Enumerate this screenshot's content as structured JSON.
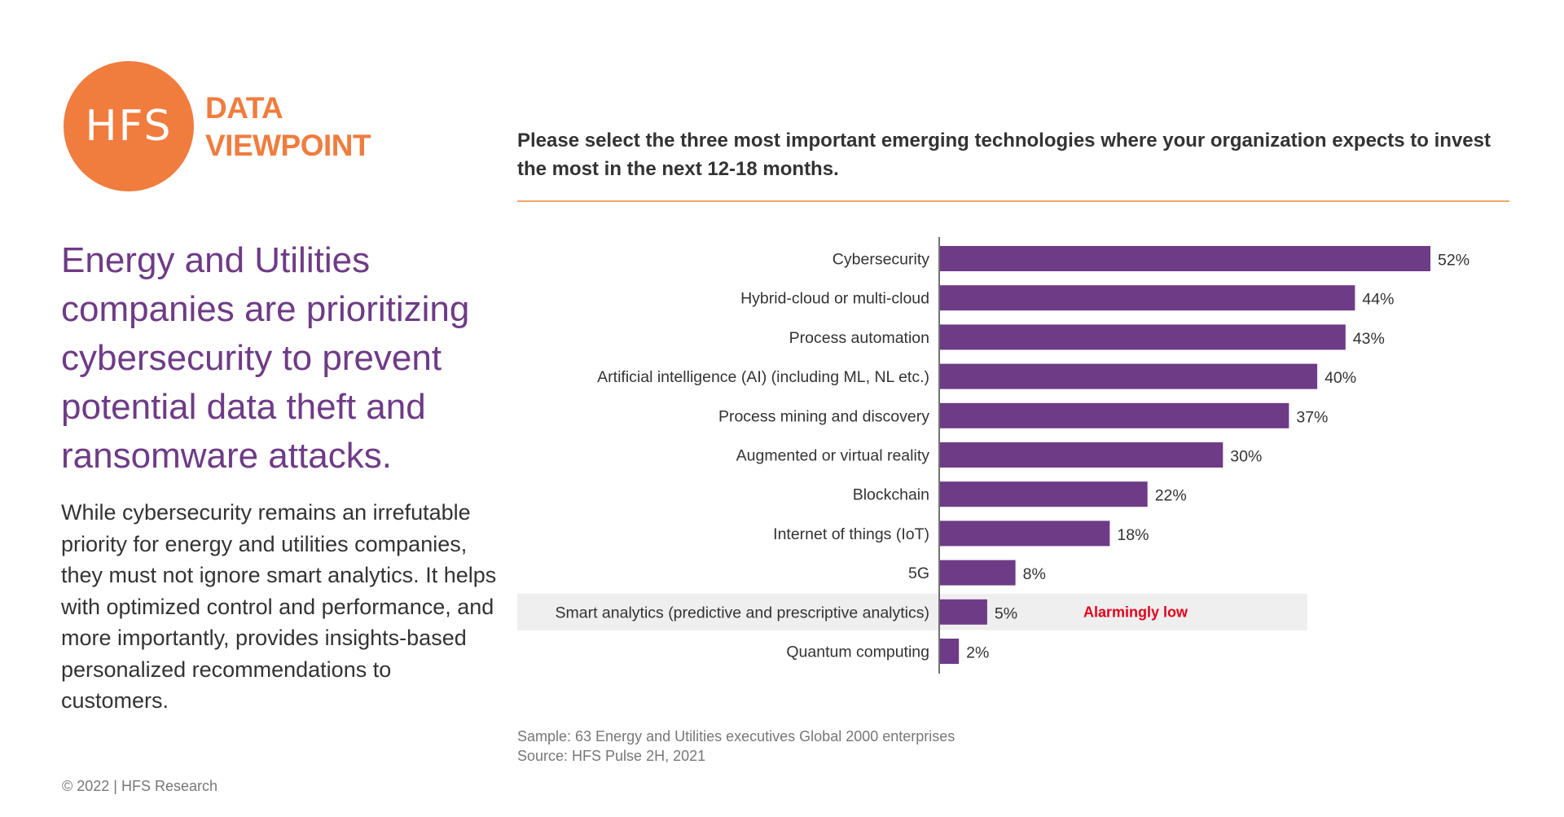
{
  "logo": {
    "mark": "HFS",
    "line1": "DATA",
    "line2": "VIEWPOINT"
  },
  "headline": "Energy and Utilities companies are prioritizing cybersecurity to prevent potential data theft and ransomware attacks.",
  "body_text": "While cybersecurity remains an irrefutable priority for energy and utilities companies, they must not ignore smart analytics. It helps with optimized control and performance, and more importantly, provides insights-based personalized recommendations to customers.",
  "question": "Please select the three most important emerging technologies where your organization expects to invest the most in the next 12-18 months.",
  "sample": "Sample: 63 Energy and Utilities executives Global 2000 enterprises",
  "source": "Source: HFS Pulse 2H, 2021",
  "copyright": "© 2022 | HFS Research",
  "colors": {
    "brand_orange": "#F07C3E",
    "bar_purple": "#6E3B86",
    "highlight_bg": "#EFEFEF",
    "alert_red": "#E3001B"
  },
  "chart_data": {
    "type": "bar",
    "orientation": "horizontal",
    "categories": [
      "Cybersecurity",
      "Hybrid-cloud or multi-cloud",
      "Process automation",
      "Artificial intelligence (AI) (including ML, NL etc.)",
      "Process mining and discovery",
      "Augmented or virtual reality",
      "Blockchain",
      "Internet of things (IoT)",
      "5G",
      "Smart analytics (predictive and prescriptive analytics)",
      "Quantum computing"
    ],
    "values": [
      52,
      44,
      43,
      40,
      37,
      30,
      22,
      18,
      8,
      5,
      2
    ],
    "value_labels": [
      "52%",
      "44%",
      "43%",
      "40%",
      "37%",
      "30%",
      "22%",
      "18%",
      "8%",
      "5%",
      "2%"
    ],
    "highlight_category": "Smart analytics (predictive and prescriptive analytics)",
    "annotation": "Alarmingly low",
    "xlim": [
      0,
      52
    ],
    "grid": false,
    "legend": "none"
  }
}
